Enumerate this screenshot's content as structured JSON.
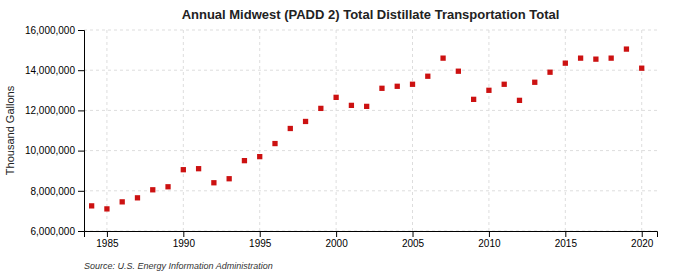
{
  "chart_data": {
    "type": "scatter",
    "title": "Annual Midwest (PADD 2) Total Distillate Transportation Total",
    "y_label": "Thousand Gallons",
    "source": "Source: U.S. Energy Information Administration",
    "x": [
      1984,
      1985,
      1986,
      1987,
      1988,
      1989,
      1990,
      1991,
      1992,
      1993,
      1994,
      1995,
      1996,
      1997,
      1998,
      1999,
      2000,
      2001,
      2002,
      2003,
      2004,
      2005,
      2006,
      2007,
      2008,
      2009,
      2010,
      2011,
      2012,
      2013,
      2014,
      2015,
      2016,
      2017,
      2018,
      2019,
      2020
    ],
    "values": [
      7250000,
      7100000,
      7450000,
      7650000,
      8050000,
      8200000,
      9050000,
      9100000,
      8400000,
      8600000,
      9500000,
      9700000,
      10350000,
      11100000,
      11450000,
      12100000,
      12650000,
      12250000,
      12200000,
      13100000,
      13200000,
      13300000,
      13700000,
      14600000,
      13950000,
      12550000,
      13000000,
      13300000,
      12500000,
      13400000,
      13900000,
      14350000,
      14600000,
      14550000,
      14600000,
      15050000,
      14100000
    ],
    "color": "#cc1111",
    "marker": "square",
    "grid": true,
    "xlim": [
      1983.5,
      2021
    ],
    "xticks": [
      1985,
      1990,
      1995,
      2000,
      2005,
      2010,
      2015,
      2020
    ],
    "ylim": [
      6000000,
      16000000
    ],
    "yticks": [
      {
        "value": 6000000,
        "label": "6,000,000"
      },
      {
        "value": 8000000,
        "label": "8,000,000"
      },
      {
        "value": 10000000,
        "label": "10,000,000"
      },
      {
        "value": 12000000,
        "label": "12,000,000"
      },
      {
        "value": 14000000,
        "label": "14,000,000"
      },
      {
        "value": 16000000,
        "label": "16,000,000"
      }
    ]
  }
}
